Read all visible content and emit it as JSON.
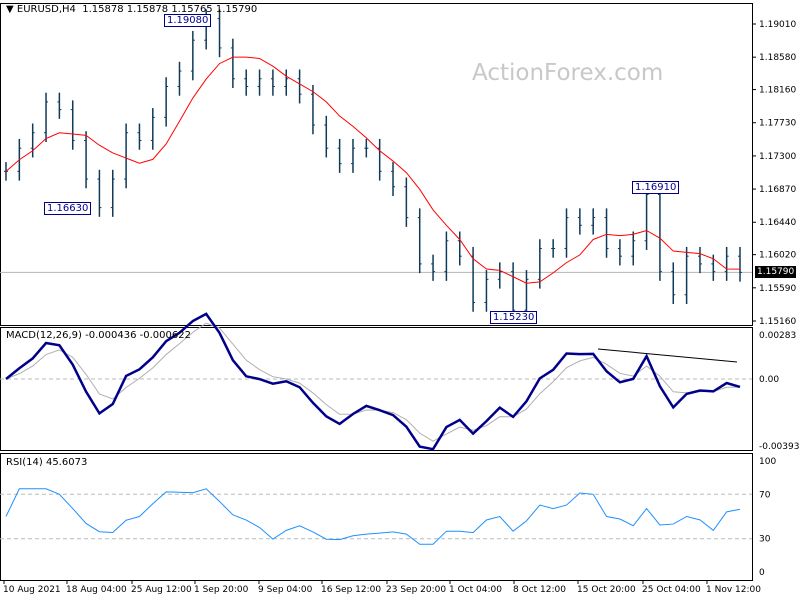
{
  "header": {
    "symbol": "EURUSD,H4",
    "ohlc": "1.15878 1.15878 1.15765 1.15790"
  },
  "watermark": "ActionForex.com",
  "macd_header": "MACD(12,26,9) -0.000436 -0.000622",
  "rsi_header": "RSI(14) 45.6073",
  "annotations": {
    "high": "1.19080",
    "low1": "1.16630",
    "low2": "1.15230",
    "high2": "1.16910"
  },
  "current_price": "1.15790",
  "colors": {
    "bars": "#0f3a5a",
    "sma": "#ff0000",
    "macd": "#00008b",
    "signal": "#b0b0b0",
    "rsi": "#1e90ff"
  },
  "chart_data": [
    {
      "type": "ohlc-bar",
      "title": "EURUSD,H4",
      "price_ticks": [
        "1.19010",
        "1.18580",
        "1.18160",
        "1.17730",
        "1.17300",
        "1.16870",
        "1.16440",
        "1.16020",
        "1.15590",
        "1.15160"
      ],
      "ylim": [
        1.1516,
        1.1925
      ],
      "x_ticks": [
        "10 Aug 2021",
        "18 Aug 04:00",
        "25 Aug 12:00",
        "1 Sep 20:00",
        "9 Sep 04:00",
        "16 Sep 12:00",
        "23 Sep 20:00",
        "1 Oct 04:00",
        "8 Oct 12:00",
        "15 Oct 20:00",
        "25 Oct 04:00",
        "1 Nov 12:00"
      ],
      "closes": [
        1.171,
        1.174,
        1.176,
        1.18,
        1.179,
        1.175,
        1.17,
        1.1663,
        1.17,
        1.176,
        1.175,
        1.178,
        1.182,
        1.184,
        1.188,
        1.1908,
        1.187,
        1.183,
        1.182,
        1.183,
        1.182,
        1.183,
        1.181,
        1.177,
        1.174,
        1.172,
        1.174,
        1.174,
        1.171,
        1.169,
        1.165,
        1.159,
        1.158,
        1.162,
        1.16,
        1.154,
        1.157,
        1.158,
        1.153,
        1.157,
        1.161,
        1.161,
        1.165,
        1.164,
        1.165,
        1.161,
        1.16,
        1.162,
        1.168,
        1.158,
        1.155,
        1.16,
        1.159,
        1.158,
        1.16,
        1.1579
      ]
    },
    {
      "type": "line",
      "title": "MACD(12,26,9)",
      "y_ticks": [
        "0.00283",
        "0.00",
        "-0.003939"
      ],
      "ylim": [
        -0.003939,
        0.00283
      ],
      "macd_last": -0.000436,
      "signal_last": -0.000622
    },
    {
      "type": "line",
      "title": "RSI(14)",
      "y_ticks": [
        "100",
        "70",
        "30",
        "0"
      ],
      "ylim": [
        0,
        100
      ],
      "levels": [
        70,
        30
      ],
      "last": 45.6073
    }
  ]
}
